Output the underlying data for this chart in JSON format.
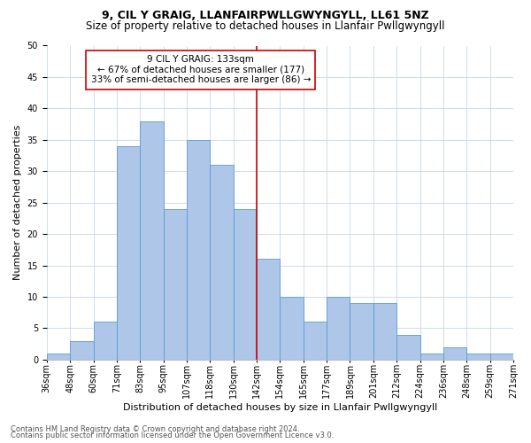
{
  "title1": "9, CIL Y GRAIG, LLANFAIRPWLLGWYNGYLL, LL61 5NZ",
  "title2": "Size of property relative to detached houses in Llanfair Pwllgwyngyll",
  "xlabel": "Distribution of detached houses by size in Llanfair Pwllgwyngyll",
  "ylabel": "Number of detached properties",
  "footer1": "Contains HM Land Registry data © Crown copyright and database right 2024.",
  "footer2": "Contains public sector information licensed under the Open Government Licence v3.0.",
  "annotation_line1": "9 CIL Y GRAIG: 133sqm",
  "annotation_line2": "← 67% of detached houses are smaller (177)",
  "annotation_line3": "33% of semi-detached houses are larger (86) →",
  "bar_values": [
    1,
    3,
    6,
    34,
    38,
    24,
    35,
    31,
    24,
    16,
    10,
    6,
    10,
    9,
    9,
    4,
    1,
    2,
    1,
    1
  ],
  "bin_labels": [
    "36sqm",
    "48sqm",
    "60sqm",
    "71sqm",
    "83sqm",
    "95sqm",
    "107sqm",
    "118sqm",
    "130sqm",
    "142sqm",
    "154sqm",
    "165sqm",
    "177sqm",
    "189sqm",
    "201sqm",
    "212sqm",
    "224sqm",
    "236sqm",
    "248sqm",
    "259sqm",
    "271sqm"
  ],
  "bar_color": "#aec6e8",
  "bar_edge_color": "#5b9bd5",
  "vline_x": 9.0,
  "vline_color": "#cc0000",
  "background_color": "#ffffff",
  "grid_color": "#c8d8e8",
  "ylim": [
    0,
    50
  ],
  "yticks": [
    0,
    5,
    10,
    15,
    20,
    25,
    30,
    35,
    40,
    45,
    50
  ],
  "annotation_box_edge": "#cc0000",
  "title1_fontsize": 9,
  "title2_fontsize": 8.5,
  "xlabel_fontsize": 8,
  "ylabel_fontsize": 8,
  "tick_fontsize": 7,
  "annotation_fontsize": 7.5,
  "footer_fontsize": 6
}
